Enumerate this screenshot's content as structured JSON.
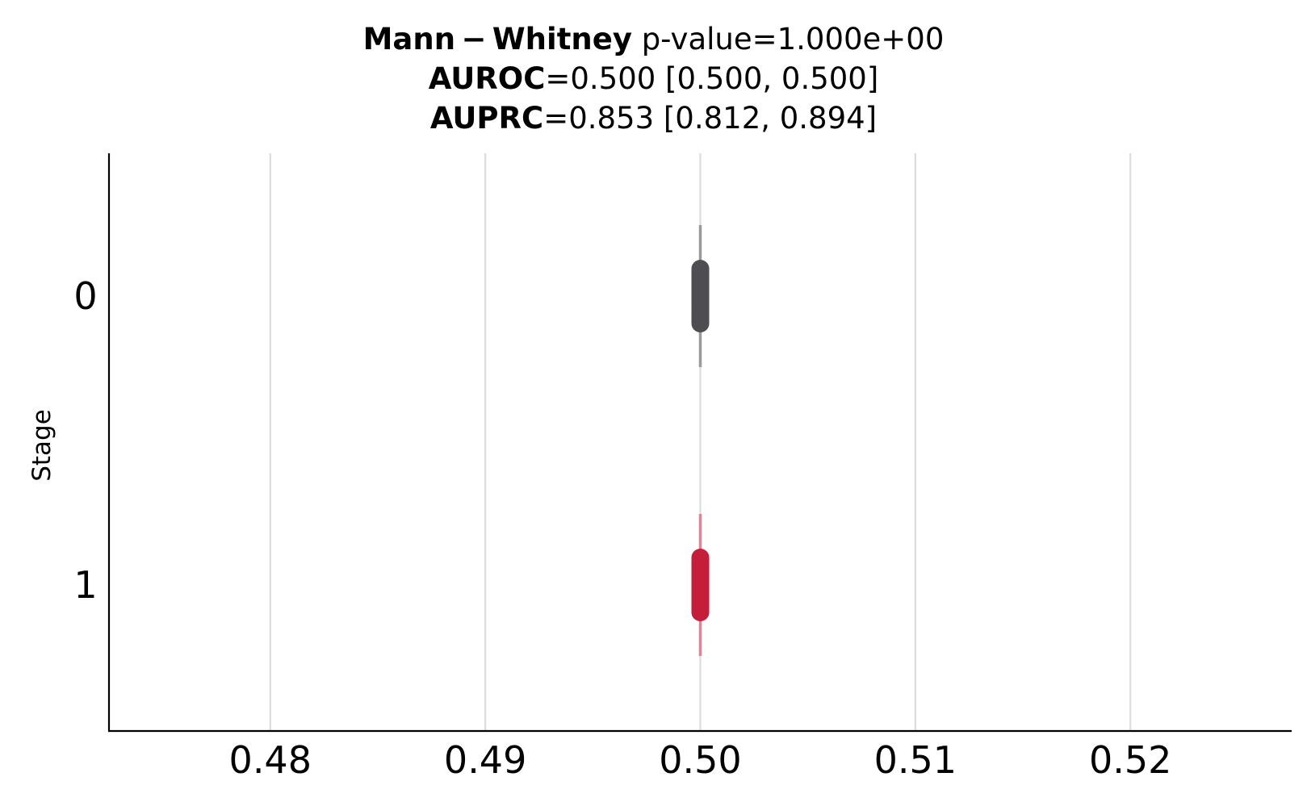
{
  "chart_data": {
    "type": "scatter",
    "title": {
      "line1_bold": "Mann − Whitney",
      "line1_rest": " p-value=1.000e+00",
      "line2_bold": "AUROC",
      "line2_rest": "=0.500 [0.500, 0.500]",
      "line3_bold": "AUPRC",
      "line3_rest": "=0.853 [0.812, 0.894]"
    },
    "xlabel": "",
    "ylabel": "Stage",
    "xlim": [
      0.4725,
      0.5275
    ],
    "x_ticks": [
      0.48,
      0.49,
      0.5,
      0.51,
      0.52
    ],
    "x_tick_labels": [
      "0.48",
      "0.49",
      "0.50",
      "0.51",
      "0.52"
    ],
    "y_categories": [
      "0",
      "1"
    ],
    "grid": "vertical",
    "series": [
      {
        "category": "0",
        "center": 0.5,
        "whisker_lo": 0.5,
        "whisker_hi": 0.5,
        "color": "#4d4d52",
        "whisker_color": "#9a9a9a"
      },
      {
        "category": "1",
        "center": 0.5,
        "whisker_lo": 0.5,
        "whisker_hi": 0.5,
        "color": "#c41e3a",
        "whisker_color": "#d48a96"
      }
    ]
  }
}
